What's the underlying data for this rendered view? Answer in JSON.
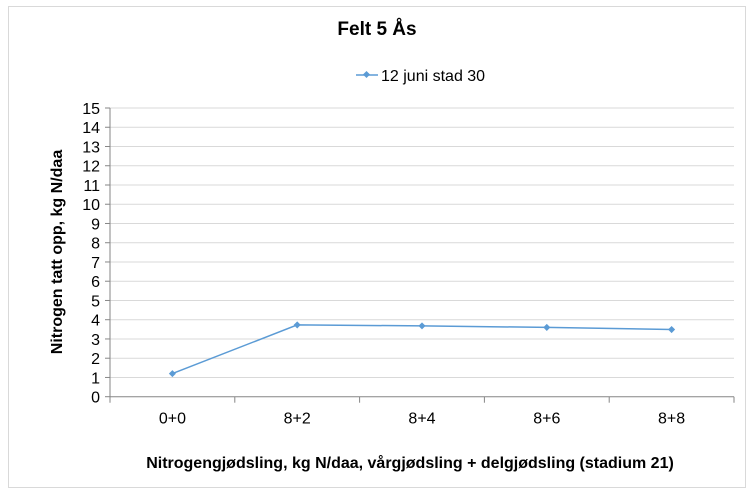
{
  "chart_data": {
    "type": "line",
    "title": "Felt 5 Ås",
    "xlabel": "Nitrogengjødsling, kg N/daa, vårgjødsling + delgjødsling (stadium 21)",
    "ylabel": "Nitrogen tatt opp, kg N/daa",
    "categories": [
      "0+0",
      "8+2",
      "8+4",
      "8+6",
      "8+8"
    ],
    "ylim": [
      0,
      15
    ],
    "yticks": [
      0,
      1,
      2,
      3,
      4,
      5,
      6,
      7,
      8,
      9,
      10,
      11,
      12,
      13,
      14,
      15
    ],
    "grid": true,
    "legend": "top",
    "series": [
      {
        "name": "12 juni stad 30",
        "color": "#5b9bd5",
        "values": [
          1.2,
          3.73,
          3.68,
          3.6,
          3.49
        ]
      }
    ]
  }
}
